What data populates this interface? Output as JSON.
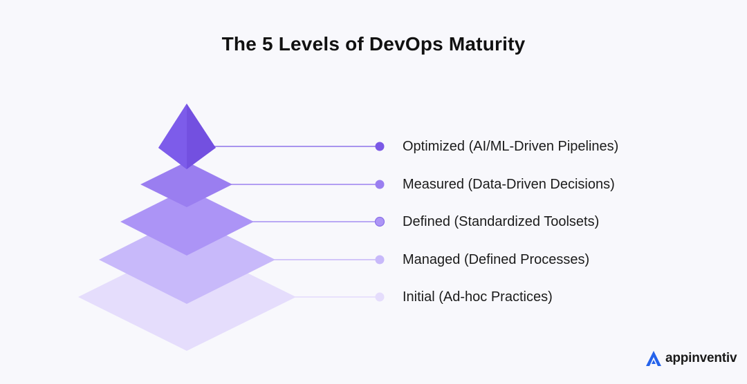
{
  "title": "The 5 Levels of DevOps Maturity",
  "levels": [
    {
      "label": "Optimized (AI/ML-Driven Pipelines)",
      "color": "#7b59e6"
    },
    {
      "label": "Measured (Data-Driven Decisions)",
      "color": "#9a7ef0"
    },
    {
      "label": "Defined (Standardized Toolsets)",
      "color": "#ad95f6"
    },
    {
      "label": "Managed (Defined Processes)",
      "color": "#c8b9fa"
    },
    {
      "label": "Initial (Ad-hoc Practices)",
      "color": "#e5ddfc"
    }
  ],
  "brand": {
    "name": "appinventiv",
    "color": "#2563eb",
    "icon": "appinventiv-logo-icon"
  }
}
